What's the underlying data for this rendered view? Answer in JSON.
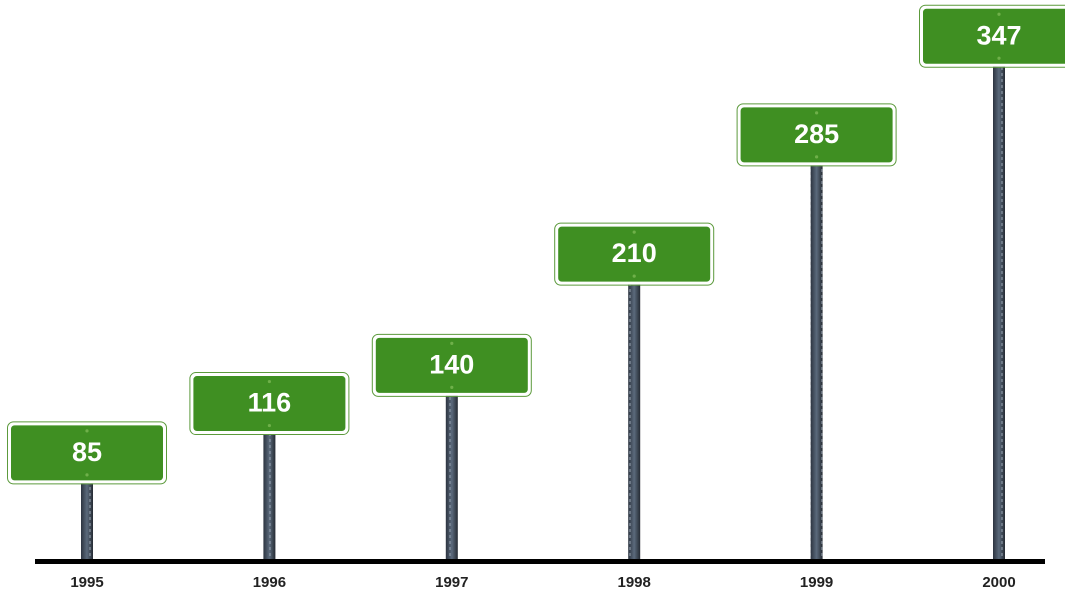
{
  "chart_data": {
    "type": "signpost",
    "categories": [
      "1995",
      "1996",
      "1997",
      "1998",
      "1999",
      "2000"
    ],
    "values": [
      85,
      116,
      140,
      210,
      285,
      347
    ],
    "color": "#3f8f22"
  }
}
